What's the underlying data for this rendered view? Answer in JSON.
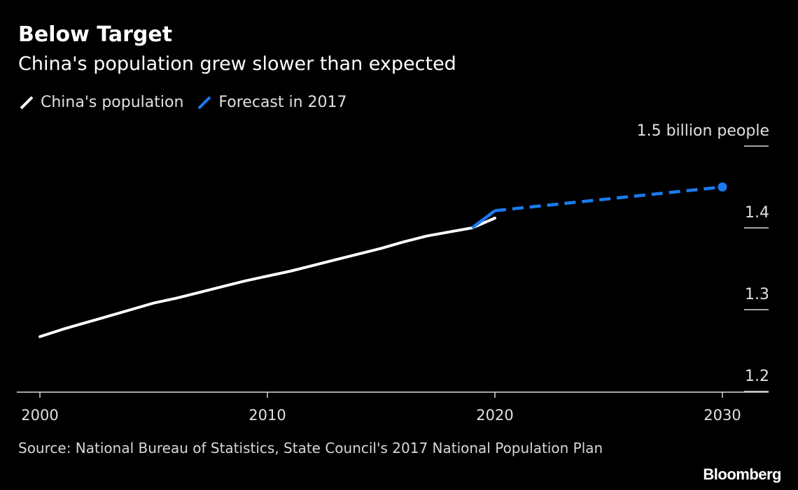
{
  "chart_data": {
    "type": "line",
    "title": "Below Target",
    "subtitle": "China's population grew slower than expected",
    "ylabel": "1.5 billion people",
    "xlim": [
      2000,
      2032
    ],
    "ylim": [
      1.2,
      1.5
    ],
    "x_ticks": [
      2000,
      2010,
      2020,
      2030
    ],
    "x_tick_labels": [
      "2000",
      "2010",
      "2020",
      "2030"
    ],
    "y_ticks": [
      1.2,
      1.3,
      1.4,
      1.5
    ],
    "y_tick_labels": [
      "1.2",
      "1.3",
      "1.4",
      "1.5 billion people"
    ],
    "y_axis_side": "right",
    "grid": false,
    "legend_position": "top-left",
    "series": [
      {
        "name": "China's population",
        "color": "#ffffff",
        "style": "solid",
        "x": [
          2000,
          2001,
          2002,
          2003,
          2004,
          2005,
          2006,
          2007,
          2008,
          2009,
          2010,
          2011,
          2012,
          2013,
          2014,
          2015,
          2016,
          2017,
          2018,
          2019,
          2020
        ],
        "y": [
          1.267,
          1.276,
          1.284,
          1.292,
          1.3,
          1.308,
          1.314,
          1.321,
          1.328,
          1.335,
          1.341,
          1.347,
          1.354,
          1.361,
          1.368,
          1.375,
          1.383,
          1.39,
          1.395,
          1.4,
          1.412
        ]
      },
      {
        "name": "Forecast in 2017",
        "color": "#1a7bf0",
        "segments": [
          {
            "style": "solid",
            "x": [
              2019,
              2020
            ],
            "y": [
              1.4,
              1.421
            ]
          },
          {
            "style": "dashed",
            "x": [
              2020,
              2030
            ],
            "y": [
              1.421,
              1.45
            ],
            "end_marker": true
          }
        ]
      }
    ]
  },
  "source_text": "Source: National Bureau of Statistics, State Council's 2017 National Population Plan",
  "brand": "Bloomberg"
}
